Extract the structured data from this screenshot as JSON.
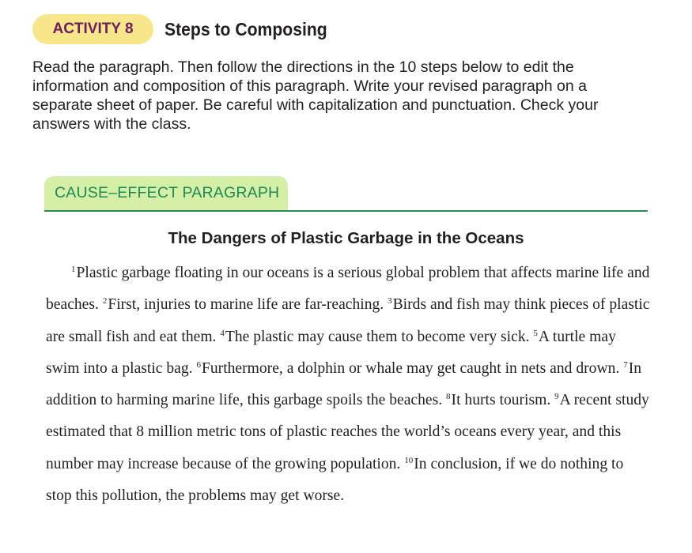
{
  "activity": {
    "badge_label": "ACTIVITY 8",
    "title": "Steps to Composing",
    "directions": "Read the paragraph. Then follow the directions in the 10 steps below to edit the information and composition of this paragraph. Write your revised paragraph on a separate sheet of paper. Be careful with capitalization and punctuation. Check your answers with the class."
  },
  "section": {
    "tab_label": "CAUSE–EFFECT PARAGRAPH",
    "paragraph_title": "The Dangers of Plastic Garbage in the Oceans"
  },
  "sentences": [
    {
      "num": "1",
      "text": "Plastic garbage floating in our oceans is a serious global problem that affects marine life and beaches. "
    },
    {
      "num": "2",
      "text": "First, injuries to marine life are far-reaching. "
    },
    {
      "num": "3",
      "text": "Birds and fish may think pieces of plastic are small fish and eat them. "
    },
    {
      "num": "4",
      "text": "The plastic may cause them to become very sick. "
    },
    {
      "num": "5",
      "text": "A turtle may swim into a plastic bag. "
    },
    {
      "num": "6",
      "text": "Furthermore, a dolphin or whale may get caught in nets and drown. "
    },
    {
      "num": "7",
      "text": "In addition to harming marine life, this garbage spoils the beaches. "
    },
    {
      "num": "8",
      "text": "It hurts tourism. "
    },
    {
      "num": "9",
      "text": "A recent study estimated that 8 million metric tons of plastic reaches the world’s oceans every year, and this number may increase because of the growing population. "
    },
    {
      "num": "10",
      "text": "In conclusion, if we do nothing to stop this pollution, the problems may get worse."
    }
  ],
  "colors": {
    "badge_bg": "#f8e68a",
    "badge_text": "#6d1f5c",
    "tab_bg": "#d6efa7",
    "tab_text": "#1b8a56",
    "rule": "#2e8b57"
  }
}
